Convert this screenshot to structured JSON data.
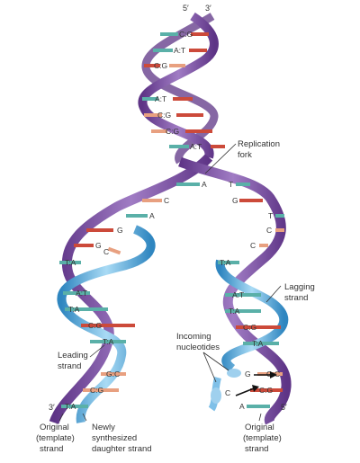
{
  "ends": {
    "top_5": "5′",
    "top_3": "3′",
    "left_3": "3′",
    "right_5": "5′"
  },
  "labels": {
    "replication_fork_1": "Replication",
    "replication_fork_2": "fork",
    "lagging_1": "Lagging",
    "lagging_2": "strand",
    "incoming_1": "Incoming",
    "incoming_2": "nucleotides",
    "leading_1": "Leading",
    "leading_2": "strand",
    "orig_left_1": "Original",
    "orig_left_2": "(template)",
    "orig_left_3": "strand",
    "new_1": "Newly",
    "new_2": "synthesized",
    "new_3": "daughter strand",
    "orig_right_1": "Original",
    "orig_right_2": "(template)",
    "orig_right_3": "strand"
  },
  "base_pairs_top": [
    "C:G",
    "A:T",
    "C:G",
    "A:T",
    "C:G",
    "C:G",
    "A:T"
  ],
  "fork_bases": [
    "A",
    "T",
    "C",
    "G",
    "A",
    "T",
    "G",
    "C",
    "G",
    "C",
    "C"
  ],
  "left_pairs": [
    "T:A",
    "A:T",
    "T:A",
    "C:G",
    "T:A",
    "G:C",
    "C:G",
    "T:A"
  ],
  "right_pairs": [
    "T:A",
    "A:T",
    "T:A",
    "C:G",
    "T:A",
    "G:C",
    "C:G",
    "A"
  ],
  "incoming": [
    "G",
    "C"
  ],
  "colors": {
    "purple": "#7b4fa0",
    "purple_light": "#a786c6",
    "blue": "#4aa3d6",
    "blue_light": "#9fd0ee",
    "teal": "#5ab0a8",
    "red": "#cc4a3a",
    "salmon": "#e8a080"
  }
}
